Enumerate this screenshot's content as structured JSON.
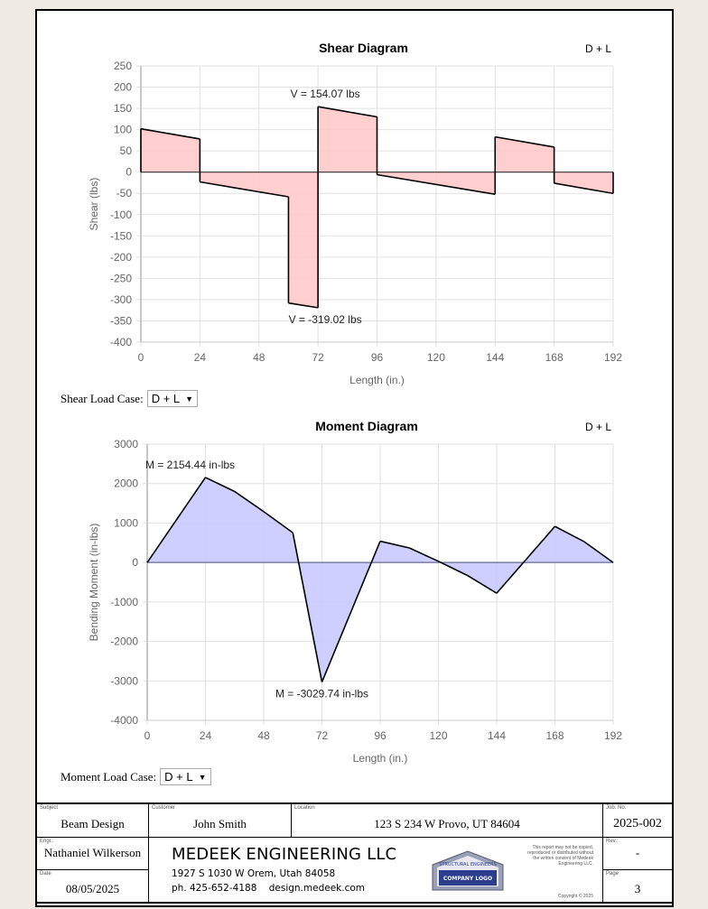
{
  "chart_data": [
    {
      "type": "area",
      "title": "Shear Diagram",
      "load_case_tag": "D + L",
      "xlabel": "Length (in.)",
      "ylabel": "Shear (lbs)",
      "xlim": [
        0,
        192
      ],
      "ylim": [
        -400,
        250
      ],
      "xticks": [
        0,
        24,
        48,
        72,
        96,
        120,
        144,
        168,
        192
      ],
      "yticks": [
        250,
        200,
        150,
        100,
        50,
        0,
        -50,
        -100,
        -150,
        -200,
        -250,
        -300,
        -350,
        -400
      ],
      "grid": true,
      "fill_color": "#ffc9c9",
      "points": [
        [
          0,
          102
        ],
        [
          24,
          78
        ],
        [
          24,
          -23
        ],
        [
          60,
          -58
        ],
        [
          60,
          -308
        ],
        [
          72,
          -319.02
        ],
        [
          72,
          154.07
        ],
        [
          96,
          130
        ],
        [
          96,
          -6
        ],
        [
          144,
          -52
        ],
        [
          144,
          83
        ],
        [
          168,
          59
        ],
        [
          168,
          -26
        ],
        [
          192,
          -50
        ]
      ],
      "annotations": [
        {
          "text": "V = 154.07 lbs",
          "x": 72,
          "y": 154.07,
          "pos": "above"
        },
        {
          "text": "V = -319.02 lbs",
          "x": 72,
          "y": -319.02,
          "pos": "below"
        }
      ]
    },
    {
      "type": "area",
      "title": "Moment Diagram",
      "load_case_tag": "D + L",
      "xlabel": "Length (in.)",
      "ylabel": "Bending Moment (in-lbs)",
      "xlim": [
        0,
        192
      ],
      "ylim": [
        -4000,
        3000
      ],
      "xticks": [
        0,
        24,
        48,
        72,
        96,
        120,
        144,
        168,
        192
      ],
      "yticks": [
        3000,
        2000,
        1000,
        0,
        -1000,
        -2000,
        -3000,
        -4000
      ],
      "grid": true,
      "fill_color": "#c9c9ff",
      "points": [
        [
          0,
          0
        ],
        [
          12,
          1077
        ],
        [
          24,
          2154.44
        ],
        [
          36,
          1800
        ],
        [
          48,
          1290
        ],
        [
          60,
          755
        ],
        [
          72,
          -3029.74
        ],
        [
          96,
          540
        ],
        [
          108,
          370
        ],
        [
          120,
          30
        ],
        [
          132,
          -330
        ],
        [
          144,
          -778
        ],
        [
          168,
          915
        ],
        [
          180,
          530
        ],
        [
          192,
          0
        ]
      ],
      "annotations": [
        {
          "text": "M = 2154.44 in-lbs",
          "x": 24,
          "y": 2154.44,
          "pos": "above"
        },
        {
          "text": "M = -3029.74 in-lbs",
          "x": 72,
          "y": -3029.74,
          "pos": "below"
        }
      ]
    }
  ],
  "controls": {
    "shear_label": "Shear Load Case:",
    "shear_value": "D + L",
    "moment_label": "Moment Load Case:",
    "moment_value": "D + L"
  },
  "title_block": {
    "subject_cap": "Subject",
    "subject": "Beam Design",
    "customer_cap": "Customer",
    "customer": "John Smith",
    "location_cap": "Location",
    "location": "123 S 234 W Provo, UT 84604",
    "job_cap": "Job. No.",
    "job": "2025-002",
    "engr_cap": "Engr.:",
    "engr": "Nathaniel Wilkerson",
    "date_cap": "Date",
    "date": "08/05/2025",
    "rev_cap": "Rev.:",
    "rev": "-",
    "page_cap": "Page",
    "page": "3",
    "company": "MEDEEK ENGINEERING LLC",
    "address": "1927 S 1030 W Orem, Utah 84058",
    "contact": "ph. 425-652-4188    design.medeek.com",
    "logo_top": "STRUCTURAL ENGINEERS",
    "logo_bottom": "COMPANY LOGO",
    "disclaimer": "This report may not be copied, reproduced or distributed without the written consent of Medeek Engineering LLC.",
    "copyright": "Copyright © 2025"
  }
}
